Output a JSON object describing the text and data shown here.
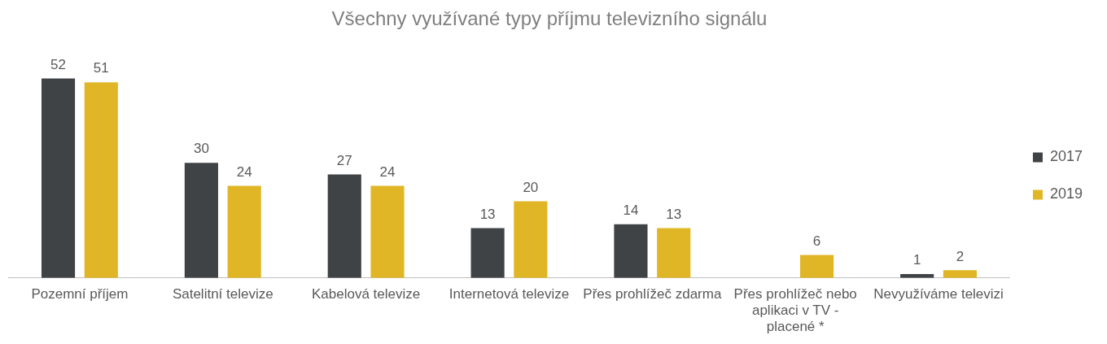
{
  "chart_data": {
    "type": "bar",
    "title": "Všechny využívané typy příjmu televizního signálu",
    "categories": [
      "Pozemní příjem",
      "Satelitní televize",
      "Kabelová televize",
      "Internetová televize",
      "Přes prohlížeč zdarma",
      "Přes prohlížeč nebo aplikaci v TV - placené *",
      "Nevyužíváme televizi"
    ],
    "series": [
      {
        "name": "2017",
        "color": "#404346",
        "values": [
          52,
          30,
          27,
          13,
          14,
          null,
          1
        ]
      },
      {
        "name": "2019",
        "color": "#e0b626",
        "values": [
          51,
          24,
          24,
          20,
          13,
          6,
          2
        ]
      }
    ],
    "data_labels": true,
    "grid": false,
    "legend": "right"
  }
}
